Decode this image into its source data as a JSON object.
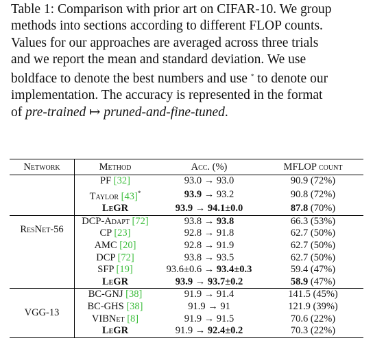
{
  "caption": {
    "line1": "Table 1: Comparison with prior art on CIFAR-10. We group",
    "line2": "methods into sections according to different FLOP counts.",
    "line3": "Values for our approaches are averaged across three trials",
    "line4": "and we report the mean and standard deviation. We use",
    "line5_a": "boldface to denote the best numbers and use ",
    "line5_star": "*",
    "line5_b": " to denote our",
    "line6": "implementation. The accuracy is represented in the format",
    "line7_a": "of ",
    "line7_em1": "pre-trained",
    "line7_arrow": " ↦ ",
    "line7_em2": "pruned-and-fine-tuned",
    "line7_end": "."
  },
  "table": {
    "headers": {
      "network": "Network",
      "method": "Method",
      "acc": "Acc. (%)",
      "mflop": "MFLOP count"
    },
    "groups": {
      "resnet": {
        "network": "ResNet-56",
        "rows": [
          {
            "m": "PF ",
            "cite": "[32]",
            "acc_a": "93.0 → 93.0",
            "acc_b": "",
            "mflop_a": "",
            "mflop_b": "90.9 (72%)"
          },
          {
            "m": "Taylor ",
            "cite": "[43]",
            "star": "*",
            "acc_a": "",
            "acc_b": "93.9",
            "acc_c": " → 93.2",
            "mflop_b": "90.8 (72%)"
          },
          {
            "m": "LeGR",
            "acc_b": "93.9 → 94.1±0.0",
            "mflop_bold": "87.8",
            "mflop_rest": " (70%)"
          },
          {
            "m": "DCP-Adapt ",
            "cite": "[72]",
            "acc_a": "93.8 → ",
            "acc_b": "93.8",
            "mflop_b": "66.3 (53%)"
          },
          {
            "m": "CP ",
            "cite": "[23]",
            "acc_a": "92.8 → 91.8",
            "mflop_b": "62.7 (50%)"
          },
          {
            "m": "AMC ",
            "cite": "[20]",
            "acc_a": "92.8 → 91.9",
            "mflop_b": "62.7 (50%)"
          },
          {
            "m": "DCP ",
            "cite": "[72]",
            "acc_a": "93.8 → 93.5",
            "mflop_b": "62.7 (50%)"
          },
          {
            "m": "SFP ",
            "cite": "[19]",
            "acc_a": "93.6±0.6 → ",
            "acc_b": "93.4±0.3",
            "mflop_b": "59.4 (47%)"
          },
          {
            "m": "LeGR",
            "acc_b": "93.9 → 93.7±0.2",
            "mflop_bold": "58.9",
            "mflop_rest": " (47%)"
          }
        ]
      },
      "vgg": {
        "network": "VGG-13",
        "rows": [
          {
            "m": "BC-GNJ ",
            "cite": "[38]",
            "acc_a": "91.9 → 91.4",
            "mflop_b": "141.5 (45%)"
          },
          {
            "m": "BC-GHS ",
            "cite": "[38]",
            "acc_a": "91.9 → 91",
            "mflop_b": "121.9 (39%)"
          },
          {
            "m": "VIBNet ",
            "cite": "[8]",
            "acc_a": "91.9 → 91.5",
            "mflop_b": "70.6 (22%)"
          },
          {
            "m": "LeGR",
            "acc_a": "91.9 → ",
            "acc_b": "92.4±0.2",
            "mflop_b": "70.3 (22%)"
          }
        ]
      }
    }
  }
}
